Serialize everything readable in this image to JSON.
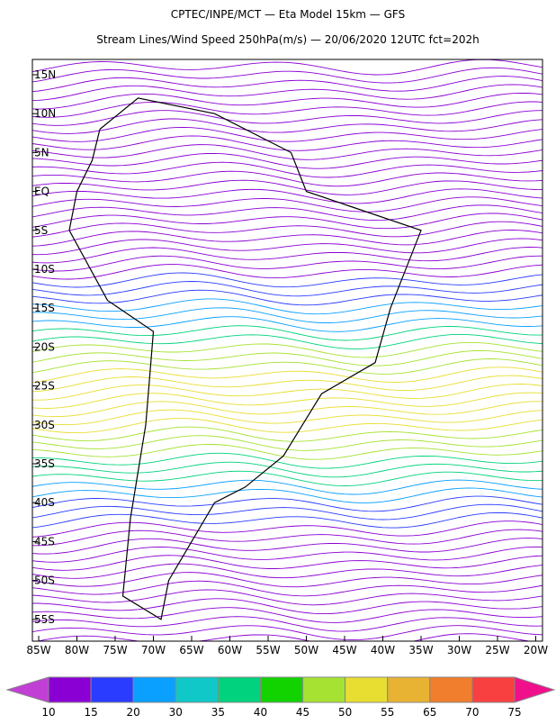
{
  "header": {
    "title": "CPTEC/INPE/MCT —  Eta Model 15km — GFS",
    "subtitle": "Stream Lines/Wind Speed 250hPa(m/s) — 20/06/2020 12UTC fct=202h"
  },
  "map": {
    "lat_labels": [
      "15N",
      "10N",
      "5N",
      "EQ",
      "5S",
      "10S",
      "15S",
      "20S",
      "25S",
      "30S",
      "35S",
      "40S",
      "45S",
      "50S",
      "55S"
    ],
    "lon_labels": [
      "85W",
      "80W",
      "75W",
      "70W",
      "65W",
      "60W",
      "55W",
      "50W",
      "45W",
      "40W",
      "35W",
      "30W",
      "25W",
      "20W"
    ]
  },
  "colorbar": {
    "labels": [
      10,
      15,
      20,
      30,
      35,
      40,
      45,
      50,
      55,
      65,
      70,
      75
    ],
    "colors": [
      "#c23fd6",
      "#8a00d4",
      "#2a3cff",
      "#0aa0ff",
      "#10c8c8",
      "#00d27d",
      "#12d200",
      "#a6e232",
      "#e8de32",
      "#e8b232",
      "#f07e2c",
      "#f84040",
      "#f0108c"
    ]
  }
}
